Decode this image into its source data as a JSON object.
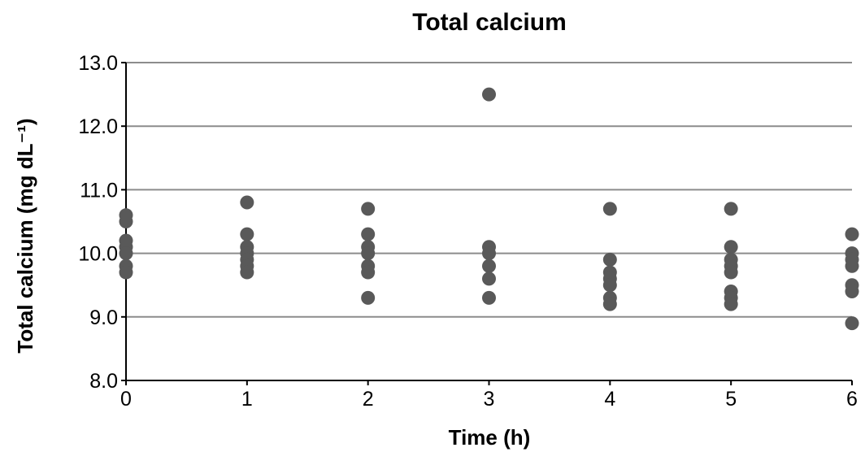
{
  "chart_data": {
    "type": "scatter",
    "title": "Total calcium",
    "xlabel": "Time (h)",
    "ylabel": "Total calcium (mg dL⁻¹)",
    "xlim": [
      0,
      6
    ],
    "ylim": [
      8.0,
      13.0
    ],
    "x_ticks": [
      "0",
      "1",
      "2",
      "3",
      "4",
      "5",
      "6"
    ],
    "y_ticks": [
      "8.0",
      "9.0",
      "10.0",
      "11.0",
      "12.0",
      "13.0"
    ],
    "grid": true,
    "marker_color": "#595959",
    "series": [
      {
        "points": [
          {
            "x": 0,
            "y": 10.6
          },
          {
            "x": 0,
            "y": 10.5
          },
          {
            "x": 0,
            "y": 10.2
          },
          {
            "x": 0,
            "y": 10.1
          },
          {
            "x": 0,
            "y": 10.0
          },
          {
            "x": 0,
            "y": 9.8
          },
          {
            "x": 0,
            "y": 9.7
          },
          {
            "x": 1,
            "y": 10.8
          },
          {
            "x": 1,
            "y": 10.3
          },
          {
            "x": 1,
            "y": 10.1
          },
          {
            "x": 1,
            "y": 10.0
          },
          {
            "x": 1,
            "y": 9.9
          },
          {
            "x": 1,
            "y": 9.8
          },
          {
            "x": 1,
            "y": 9.7
          },
          {
            "x": 2,
            "y": 10.7
          },
          {
            "x": 2,
            "y": 10.3
          },
          {
            "x": 2,
            "y": 10.1
          },
          {
            "x": 2,
            "y": 10.0
          },
          {
            "x": 2,
            "y": 9.8
          },
          {
            "x": 2,
            "y": 9.7
          },
          {
            "x": 2,
            "y": 9.3
          },
          {
            "x": 3,
            "y": 12.5
          },
          {
            "x": 3,
            "y": 10.1
          },
          {
            "x": 3,
            "y": 10.0
          },
          {
            "x": 3,
            "y": 9.8
          },
          {
            "x": 3,
            "y": 9.6
          },
          {
            "x": 3,
            "y": 9.3
          },
          {
            "x": 4,
            "y": 10.7
          },
          {
            "x": 4,
            "y": 9.9
          },
          {
            "x": 4,
            "y": 9.7
          },
          {
            "x": 4,
            "y": 9.6
          },
          {
            "x": 4,
            "y": 9.5
          },
          {
            "x": 4,
            "y": 9.3
          },
          {
            "x": 4,
            "y": 9.2
          },
          {
            "x": 5,
            "y": 10.7
          },
          {
            "x": 5,
            "y": 10.1
          },
          {
            "x": 5,
            "y": 9.9
          },
          {
            "x": 5,
            "y": 9.8
          },
          {
            "x": 5,
            "y": 9.7
          },
          {
            "x": 5,
            "y": 9.4
          },
          {
            "x": 5,
            "y": 9.3
          },
          {
            "x": 5,
            "y": 9.2
          },
          {
            "x": 6,
            "y": 10.3
          },
          {
            "x": 6,
            "y": 10.0
          },
          {
            "x": 6,
            "y": 9.9
          },
          {
            "x": 6,
            "y": 9.8
          },
          {
            "x": 6,
            "y": 9.5
          },
          {
            "x": 6,
            "y": 9.4
          },
          {
            "x": 6,
            "y": 8.9
          }
        ]
      }
    ]
  }
}
